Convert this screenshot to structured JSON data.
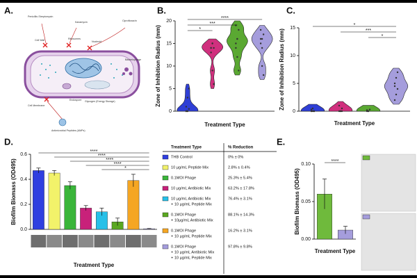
{
  "panels": [
    "A.",
    "B.",
    "C.",
    "D.",
    "E."
  ],
  "diagram": {
    "labels": [
      "Penicillin-Streptomycin",
      "Kanamycin",
      "Ciprofloxacin",
      "Cell Wall",
      "Ribosomes",
      "Nucleoid",
      "Bacteriophage",
      "Endospore",
      "Glycogen (Energy Storage)",
      "Cell Membrane",
      "Antimicrobial Peptides (AMPs)"
    ]
  },
  "chart_data": [
    {
      "type": "violin",
      "categories": [
        null,
        null,
        null,
        null
      ],
      "series": [
        {
          "color": "#2f3fd6",
          "values": [
            0,
            0,
            0.5,
            1,
            3,
            5,
            0,
            0
          ]
        },
        {
          "color": "#d0307e",
          "values": [
            14,
            15,
            14,
            13,
            9,
            6,
            14,
            15
          ]
        },
        {
          "color": "#5aa832",
          "values": [
            15,
            16,
            18,
            19,
            12,
            9,
            14,
            16
          ]
        },
        {
          "color": "#a59ddc",
          "values": [
            15,
            16,
            17,
            18,
            10,
            8,
            16,
            14
          ]
        }
      ],
      "ylabel": "Zone of Inhibition Radius (mm)",
      "xlabel": "Treatment Type",
      "ylim": [
        0,
        20
      ],
      "yticks": [
        0,
        5,
        10,
        15,
        20
      ],
      "annotations": [
        {
          "text": "****",
          "between": [
            0,
            3
          ]
        },
        {
          "text": "***",
          "between": [
            0,
            2
          ]
        },
        {
          "text": "*",
          "between": [
            0,
            1
          ]
        }
      ]
    },
    {
      "type": "violin",
      "categories": [
        null,
        null,
        null,
        null
      ],
      "series": [
        {
          "color": "#2f3fd6",
          "values": [
            0,
            0,
            0,
            0.3,
            0.5,
            0,
            0
          ]
        },
        {
          "color": "#d0307e",
          "values": [
            0,
            0,
            0.5,
            1,
            0,
            0
          ]
        },
        {
          "color": "#5aa832",
          "values": [
            0,
            0,
            0.3,
            0.2,
            0
          ]
        },
        {
          "color": "#a59ddc",
          "values": [
            2,
            3,
            4,
            5,
            6,
            7,
            4.5
          ]
        }
      ],
      "ylabel": "Zone of Inhibition Radius (mm)",
      "xlabel": "Treatment Type",
      "ylim": [
        0,
        15
      ],
      "yticks": [
        0,
        5,
        10,
        15
      ],
      "annotations": [
        {
          "text": "*",
          "between": [
            0,
            3
          ]
        },
        {
          "text": "***",
          "between": [
            1,
            3
          ]
        },
        {
          "text": "*",
          "between": [
            2,
            3
          ]
        }
      ]
    },
    {
      "type": "bar",
      "categories": [
        null,
        null,
        null,
        null,
        null,
        null,
        null,
        null
      ],
      "values": [
        0.47,
        0.45,
        0.35,
        0.17,
        0.14,
        0.06,
        0.39,
        0.005
      ],
      "errors": [
        0.02,
        0.02,
        0.03,
        0.02,
        0.03,
        0.03,
        0.05,
        0.002
      ],
      "colors": [
        "#2f3fe0",
        "#f2f26a",
        "#3ab53a",
        "#c8217a",
        "#27c0e8",
        "#5aa820",
        "#f5a623",
        "#a59ddc"
      ],
      "ylabel": "Biofilm Biomass (OD495)",
      "xlabel": "Treatment Type",
      "ylim": [
        0,
        0.6
      ],
      "yticks": [
        {
          "value": 0,
          "label": "0.0"
        },
        0.2,
        0.4,
        0.6
      ],
      "annotations": [
        {
          "text": "****",
          "between": [
            0,
            7
          ]
        },
        {
          "text": "****",
          "between": [
            1,
            7
          ]
        },
        {
          "text": "****",
          "between": [
            2,
            7
          ]
        },
        {
          "text": "****",
          "between": [
            3,
            7
          ]
        },
        {
          "text": "*",
          "between": [
            4,
            7
          ]
        }
      ]
    },
    {
      "type": "bar",
      "categories": [
        null,
        null
      ],
      "values": [
        0.06,
        0.012
      ],
      "errors": [
        0.02,
        0.005
      ],
      "colors": [
        "#6fba3c",
        "#a59ddc"
      ],
      "ylabel": "Biofilm Biomass (OD495)",
      "xlabel": "Treatment Type",
      "ylim": [
        0,
        0.1
      ],
      "yticks": [
        {
          "value": 0,
          "label": "0.00"
        },
        0.05,
        {
          "value": 0.1,
          "label": "0.10"
        }
      ],
      "annotations": [
        {
          "text": "****",
          "between": [
            0,
            1
          ]
        }
      ]
    }
  ],
  "table": {
    "header": [
      "Treatment Type",
      "% Reduction"
    ],
    "rows": [
      {
        "treatment": [
          "THB Control"
        ],
        "reduction": "0% ± 0%"
      },
      {
        "treatment": [
          "10 µg/mL Peptide Mix"
        ],
        "reduction": "2.8% ± 0.4%"
      },
      {
        "treatment": [
          "0.1MOI Phage"
        ],
        "reduction": "25.3% ± 5.4%"
      },
      {
        "treatment": [
          "10 µg/mL Antibiotic Mix"
        ],
        "reduction": "63.2% ± 17.8%"
      },
      {
        "treatment": [
          "10 µg/mL Antibiotic Mix",
          "+ 10 µg/mL Peptide Mix"
        ],
        "reduction": "76.4% ± 3.1%"
      },
      {
        "treatment": [
          "0.1MOI Phage",
          "+ 10µg/mL Antibiotic Mix"
        ],
        "reduction": "88.1% ± 14.3%"
      },
      {
        "treatment": [
          "0.1MOI Phage",
          "+ 10 µg/mL Peptide Mix"
        ],
        "reduction": "16.2% ± 3.1%"
      },
      {
        "treatment": [
          "0.1MOI Phage",
          "+ 10 µg/mL Antibiotic Mix",
          "+ 10 µg/mL Peptide Mix"
        ],
        "reduction": "97.8% ± 9.8%"
      }
    ]
  }
}
